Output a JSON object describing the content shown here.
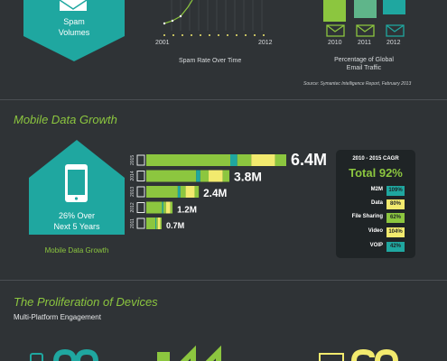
{
  "top": {
    "spam_label_line1": "Spam",
    "spam_label_line2": "Volumes",
    "spam_chart": {
      "x_start": "2001",
      "x_end": "2012",
      "caption": "Spam Rate Over Time"
    },
    "traffic_chart": {
      "years": [
        "2010",
        "2011",
        "2012"
      ],
      "caption_line1": "Percentage of Global",
      "caption_line2": "Email Traffic"
    },
    "source": "Source: Symantec Intelligence Report, February 2013"
  },
  "mobile": {
    "heading": "Mobile Data Growth",
    "badge_line1": "26% Over",
    "badge_line2": "Next 5 Years",
    "badge_caption": "Mobile Data Growth",
    "cagr": {
      "title": "2010 - 2015 CAGR",
      "total": "Total 92%",
      "rows": [
        {
          "label": "M2M",
          "value": "109%",
          "color": "#1fa7a0"
        },
        {
          "label": "Data",
          "value": "80%",
          "color": "#f2ea6e"
        },
        {
          "label": "File Sharing",
          "value": "62%",
          "color": "#8cc63f"
        },
        {
          "label": "Video",
          "value": "104%",
          "color": "#f2ea6e"
        },
        {
          "label": "VOIP",
          "value": "42%",
          "color": "#1fa7a0"
        }
      ]
    }
  },
  "devices": {
    "heading": "The Proliferation of Devices",
    "subheading": "Multi-Platform Engagement"
  },
  "chart_data": {
    "type": "bar",
    "orientation": "horizontal",
    "categories": [
      "2011",
      "2012",
      "2013",
      "2014",
      "2015"
    ],
    "values": [
      0.7,
      1.2,
      2.4,
      3.8,
      6.4
    ],
    "value_labels": [
      "0.7M",
      "1.2M",
      "2.4M",
      "3.8M",
      "6.4M"
    ],
    "xlabel": "",
    "ylabel": "",
    "colors": {
      "green": "#8cc63f",
      "teal": "#1fa7a0",
      "yellow": "#f2ea6e"
    }
  }
}
